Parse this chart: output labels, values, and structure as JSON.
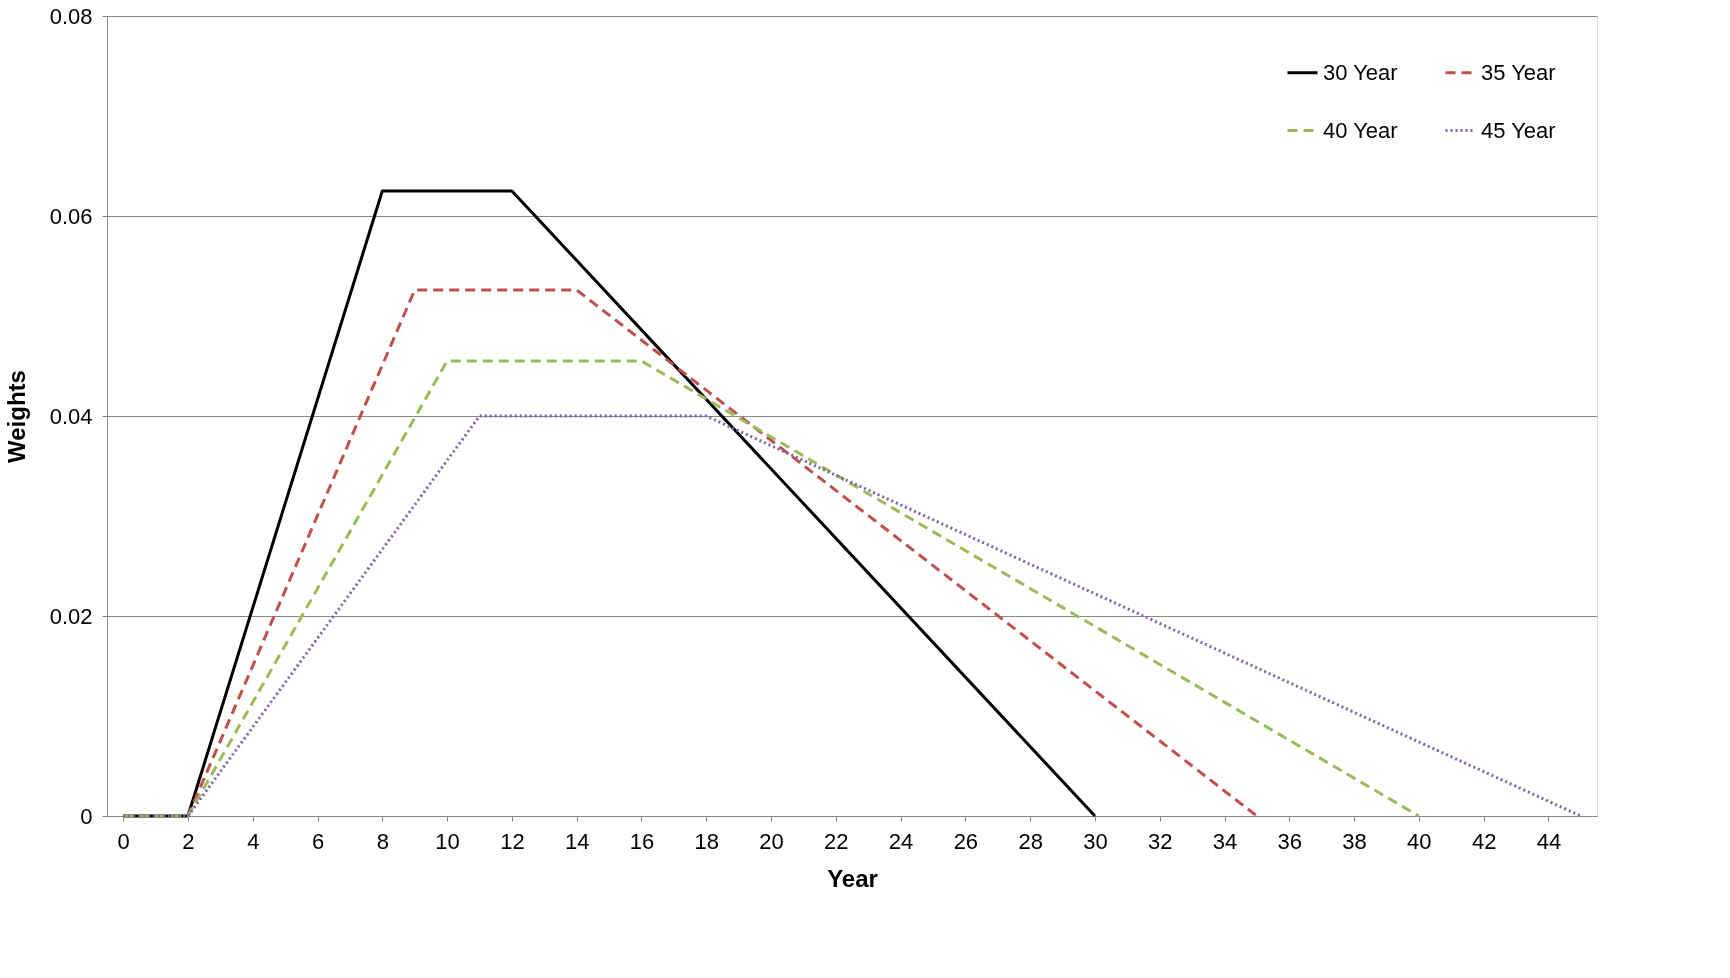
{
  "chart_data": {
    "type": "line",
    "xlabel": "Year",
    "ylabel": "Weights",
    "xlim": [
      -0.5,
      45.5
    ],
    "xticks": [
      0,
      2,
      4,
      6,
      8,
      10,
      12,
      14,
      16,
      18,
      20,
      22,
      24,
      26,
      28,
      30,
      32,
      34,
      36,
      38,
      40,
      42,
      44
    ],
    "ylim": [
      0,
      0.08
    ],
    "yticks": [
      0,
      0.02,
      0.04,
      0.06,
      0.08
    ],
    "grid": "y",
    "legend": "top right",
    "series": [
      {
        "name": "30 Year",
        "color": "#000000",
        "line_style": "solid",
        "x": [
          0,
          2,
          8,
          12,
          30
        ],
        "values": [
          0,
          0,
          0.0625,
          0.0625,
          0
        ]
      },
      {
        "name": "35 Year",
        "color": "#c0504d",
        "line_style": "dashed",
        "x": [
          0,
          2,
          9,
          14,
          35
        ],
        "values": [
          0,
          0,
          0.0526,
          0.0526,
          0
        ]
      },
      {
        "name": "40 Year",
        "color": "#9bbb59",
        "line_style": "dashed",
        "x": [
          0,
          2,
          10,
          16,
          40
        ],
        "values": [
          0,
          0,
          0.0455,
          0.0455,
          0
        ]
      },
      {
        "name": "45 Year",
        "color": "#8064a2",
        "line_style": "dotted",
        "x": [
          0,
          2,
          11,
          18,
          45
        ],
        "values": [
          0,
          0,
          0.04,
          0.04,
          0
        ]
      }
    ]
  }
}
